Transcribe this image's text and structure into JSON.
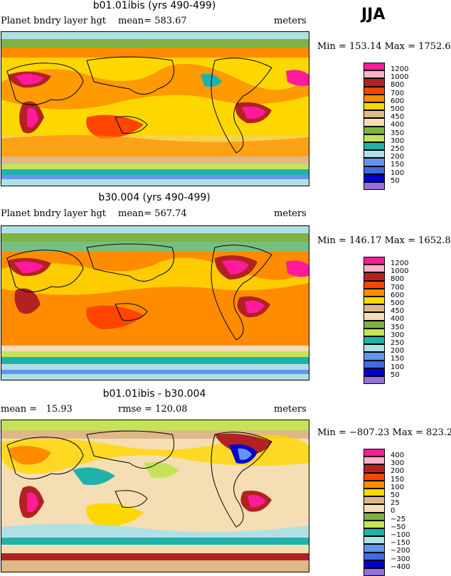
{
  "season": "JJA",
  "panels": [
    {
      "title": "b01.01ibis (yrs 490-499)",
      "left_label": "Planet bndry layer hgt",
      "center_label": "mean= 583.67",
      "units": "meters",
      "minmax": "Min = 153.14  Max = 1752.63",
      "legend_labels": [
        "1200",
        "1000",
        "800",
        "700",
        "600",
        "500",
        "450",
        "400",
        "350",
        "300",
        "250",
        "200",
        "150",
        "100",
        "50"
      ],
      "legend_colors": [
        "#ff1a9c",
        "#ffb0c8",
        "#b22222",
        "#ff4500",
        "#ff8c00",
        "#ffd700",
        "#deb887",
        "#f5deb3",
        "#7cb342",
        "#c5e35a",
        "#20b2aa",
        "#b0e0e6",
        "#6495ed",
        "#4169e1",
        "#0000cd",
        "#9370db"
      ]
    },
    {
      "title": "b30.004 (yrs 490-499)",
      "left_label": "Planet bndry layer hgt",
      "center_label": "mean= 567.74",
      "units": "meters",
      "minmax": "Min = 146.17  Max = 1652.81",
      "legend_labels": [
        "1200",
        "1000",
        "800",
        "700",
        "600",
        "500",
        "450",
        "400",
        "350",
        "300",
        "250",
        "200",
        "150",
        "100",
        "50"
      ],
      "legend_colors": [
        "#ff1a9c",
        "#ffb0c8",
        "#b22222",
        "#ff4500",
        "#ff8c00",
        "#ffd700",
        "#deb887",
        "#f5deb3",
        "#7cb342",
        "#c5e35a",
        "#20b2aa",
        "#b0e0e6",
        "#6495ed",
        "#4169e1",
        "#0000cd",
        "#9370db"
      ]
    },
    {
      "title": "b01.01ibis - b30.004",
      "left_label": "mean =   15.93",
      "center_label": "rmse = 120.08",
      "units": "meters",
      "minmax": "Min = −807.23  Max = 823.23",
      "legend_labels": [
        "400",
        "300",
        "200",
        "150",
        "100",
        "50",
        "25",
        "0",
        "−25",
        "−50",
        "−100",
        "−150",
        "−200",
        "−300",
        "−400"
      ],
      "legend_colors": [
        "#ff1a9c",
        "#ffb0c8",
        "#b22222",
        "#ff4500",
        "#ff8c00",
        "#ffd700",
        "#deb887",
        "#f5deb3",
        "#7cb342",
        "#c5e35a",
        "#20b2aa",
        "#b0e0e6",
        "#6495ed",
        "#4169e1",
        "#0000cd",
        "#9370db"
      ]
    }
  ]
}
